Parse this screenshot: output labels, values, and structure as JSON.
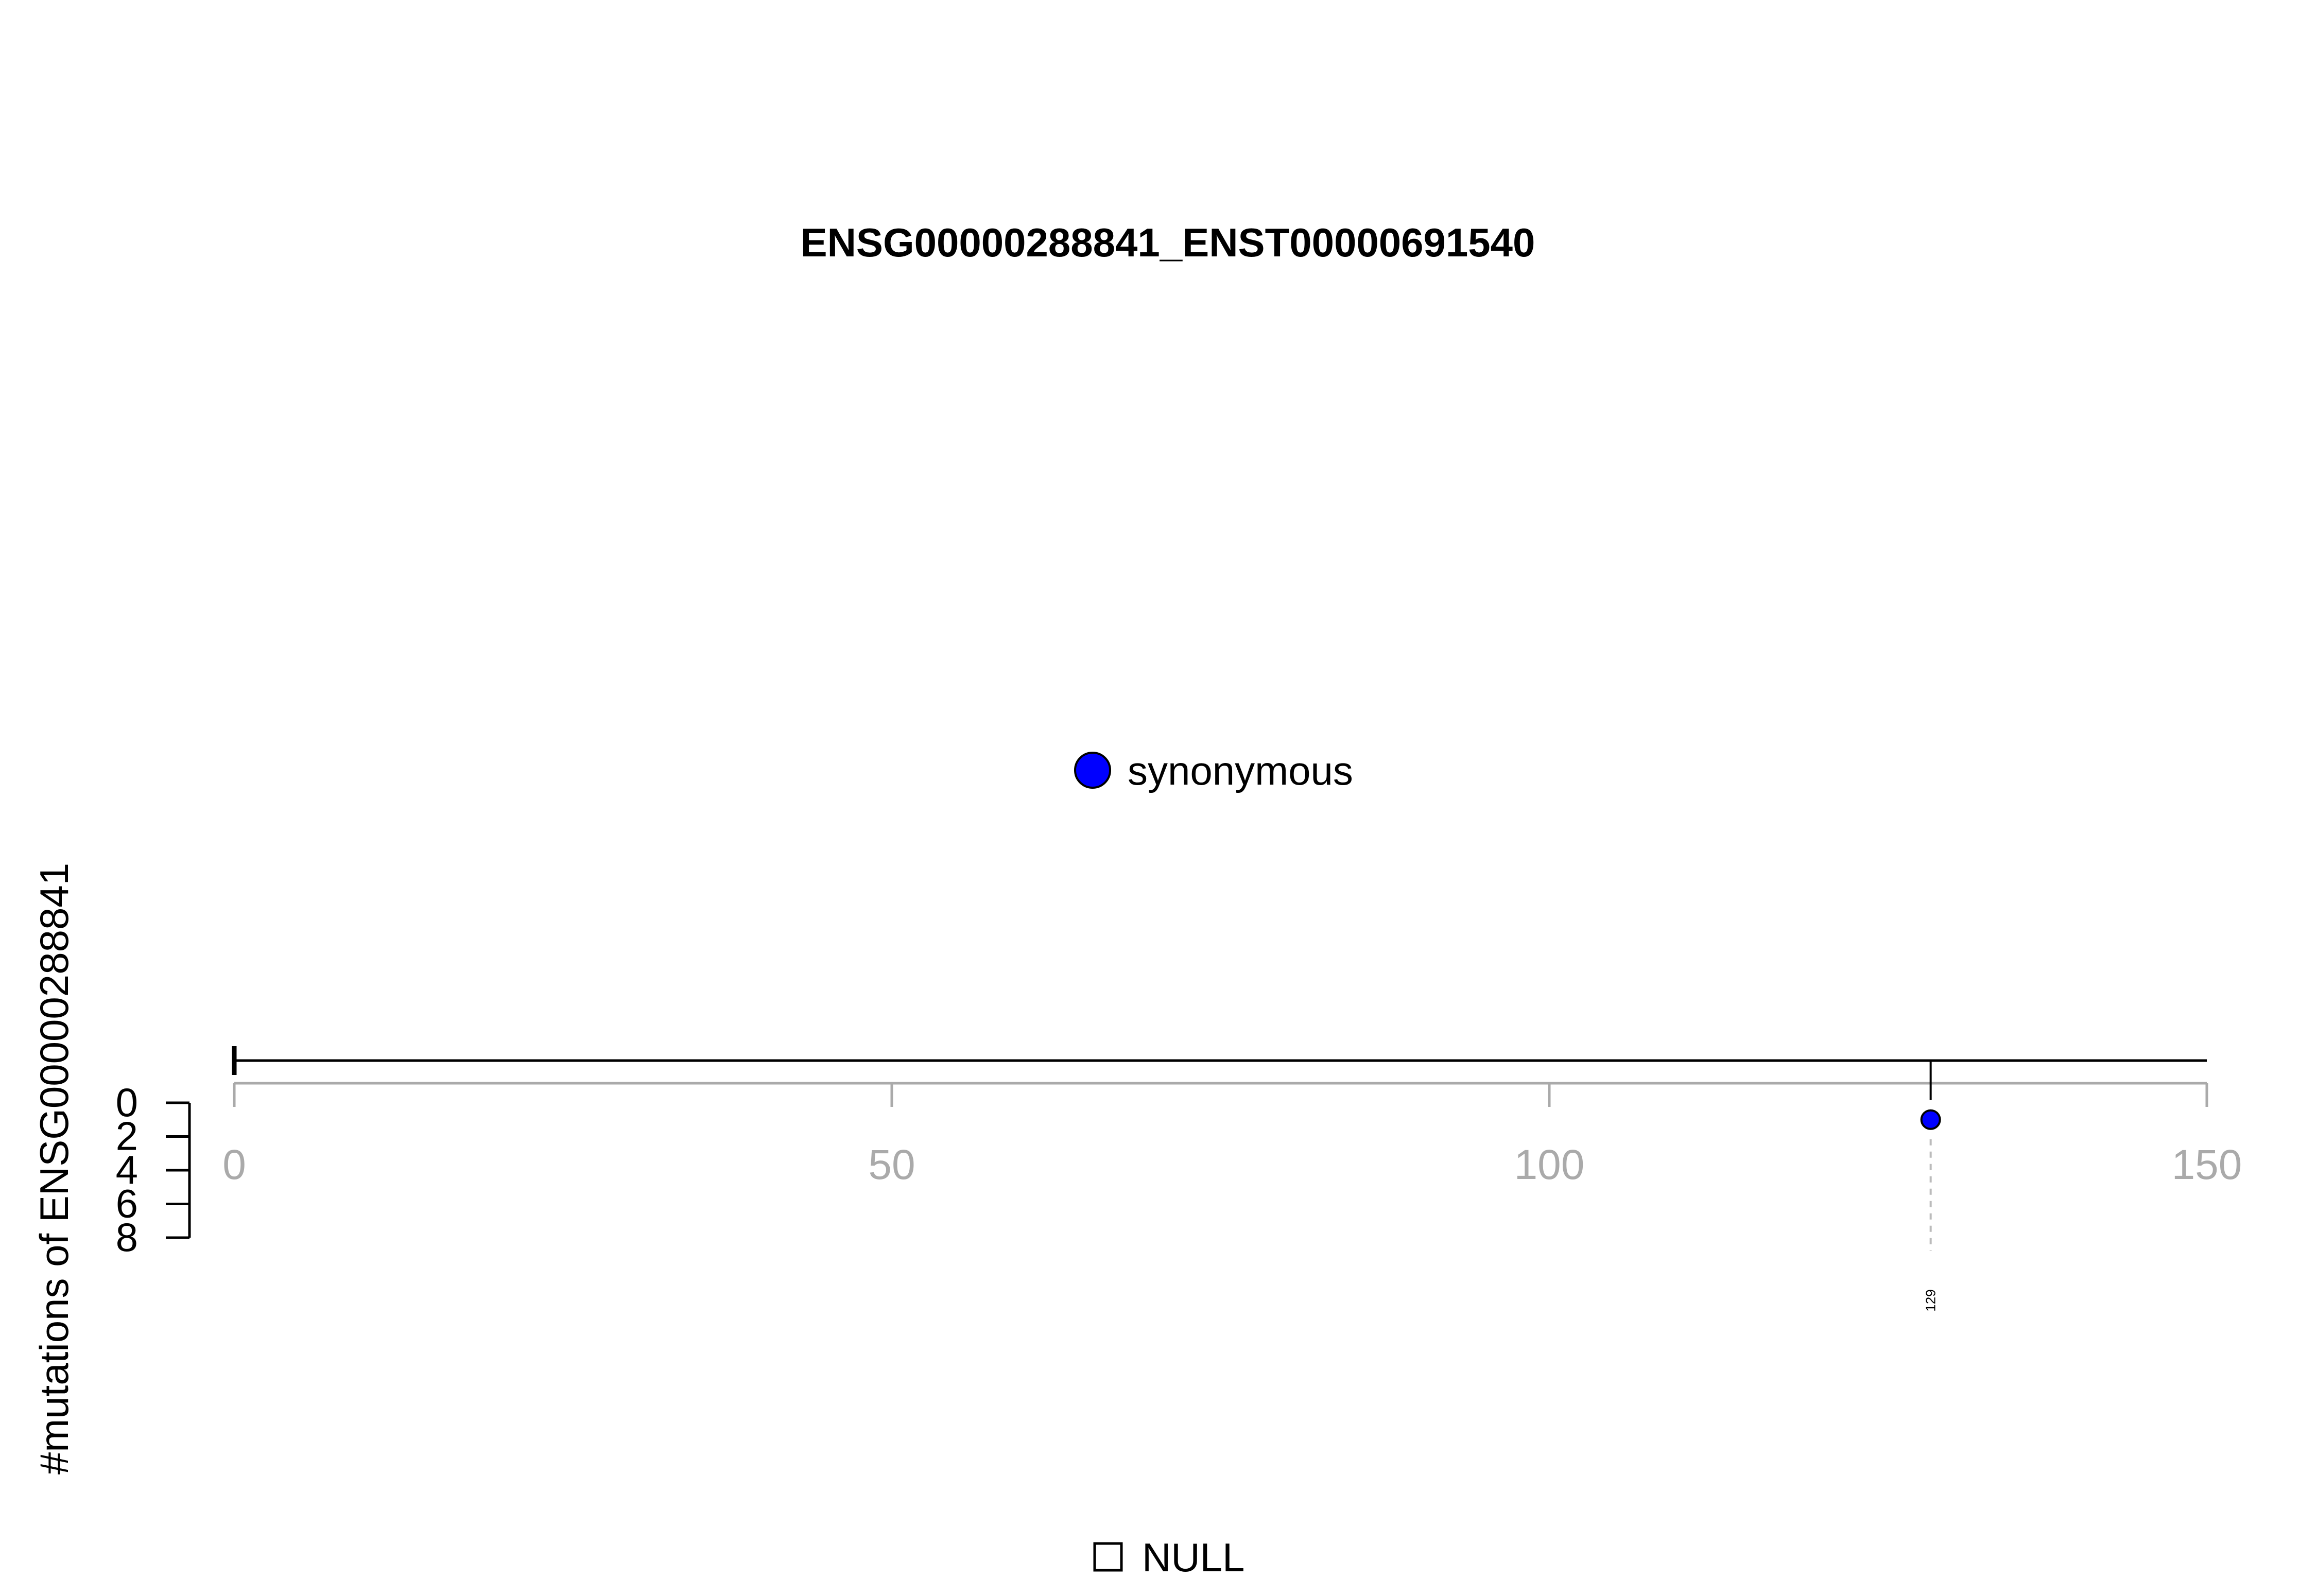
{
  "chart_data": {
    "type": "lollipop",
    "title": "ENSG00000288841_ENST00000691540",
    "ylabel": "#mutations of ENSG00000288841",
    "xlim": [
      0,
      150
    ],
    "x_ticks": [
      0,
      50,
      100,
      150
    ],
    "ylim": [
      0,
      8
    ],
    "y_ticks": [
      0,
      2,
      4,
      6,
      8
    ],
    "legend": [
      {
        "label": "synonymous",
        "color": "#0000ff"
      }
    ],
    "domain_legend": [
      {
        "label": "NULL",
        "color": "#ffffff"
      }
    ],
    "points": [
      {
        "position": 129,
        "count": 1,
        "type": "synonymous",
        "color": "#0000ff",
        "label": "129"
      }
    ],
    "colors": {
      "protein_line": "#000000",
      "axis_gray": "#aaaaaa",
      "dashed_guide": "#bbbbbb"
    }
  }
}
